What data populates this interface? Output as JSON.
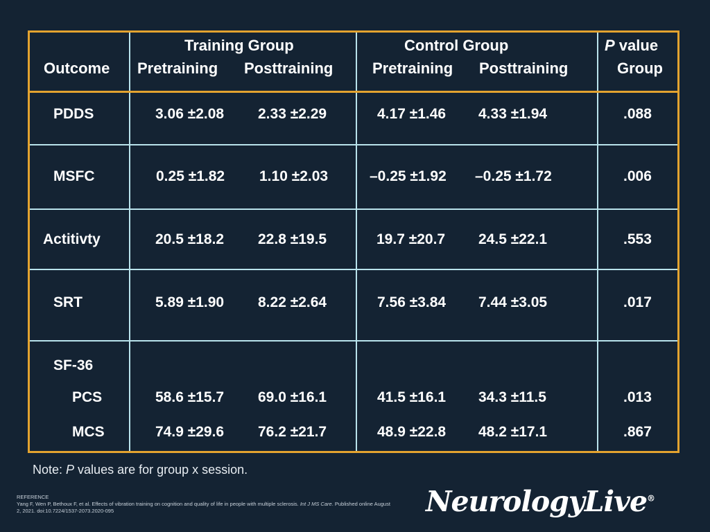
{
  "table": {
    "headers": {
      "outcome": "Outcome",
      "training_group": "Training Group",
      "control_group": "Control Group",
      "p_value_italic": "P",
      "p_value_rest": " value",
      "p_value_group": "Group",
      "training_pre": "Pretraining",
      "training_post": "Posttraining",
      "control_pre": "Pretraining",
      "control_post": "Posttraining"
    },
    "rows": [
      {
        "label": "PDDS",
        "t_pre": "3.06 ±2.08",
        "t_post": "2.33 ±2.29",
        "c_pre": "4.17 ±1.46",
        "c_post": "4.33 ±1.94",
        "p": ".088"
      },
      {
        "label": "MSFC",
        "t_pre": "0.25 ±1.82",
        "t_post": "1.10 ±2.03",
        "c_pre": "–0.25 ±1.92",
        "c_post": "–0.25 ±1.72",
        "p": ".006"
      },
      {
        "label": "Actitivty",
        "t_pre": "20.5 ±18.2",
        "t_post": "22.8 ±19.5",
        "c_pre": "19.7 ±20.7",
        "c_post": "24.5 ±22.1",
        "p": ".553"
      },
      {
        "label": "SRT",
        "t_pre": "5.89 ±1.90",
        "t_post": "8.22 ±2.64",
        "c_pre": "7.56 ±3.84",
        "c_post": "7.44 ±3.05",
        "p": ".017"
      }
    ],
    "sf36": {
      "label": "SF-36",
      "subrows": [
        {
          "label": "PCS",
          "t_pre": "58.6 ±15.7",
          "t_post": "69.0 ±16.1",
          "c_pre": "41.5 ±16.1",
          "c_post": "34.3 ±11.5",
          "p": ".013"
        },
        {
          "label": "MCS",
          "t_pre": "74.9 ±29.6",
          "t_post": "76.2 ±21.7",
          "c_pre": "48.9 ±22.8",
          "c_post": "48.2 ±17.1",
          "p": ".867"
        }
      ]
    }
  },
  "note": {
    "prefix": "Note: ",
    "italic": "P",
    "suffix": " values are for group x session."
  },
  "reference": {
    "label": "REFERENCE",
    "text_before": "Yang F, Wen P, Bethoux F, et al. Effects of vibration training on cognition and quality of life in people with multiple sclerosis. ",
    "journal": "Int J MS Care",
    "text_after": ". Published online August 2, 2021. doi:10.7224/1537-2073.2020-095"
  },
  "logo": {
    "text": "NeurologyLive",
    "mark": "®"
  },
  "colors": {
    "background": "#142333",
    "border": "#e3a32f",
    "gridline": "#b9e3ec",
    "text": "#ffffff"
  }
}
